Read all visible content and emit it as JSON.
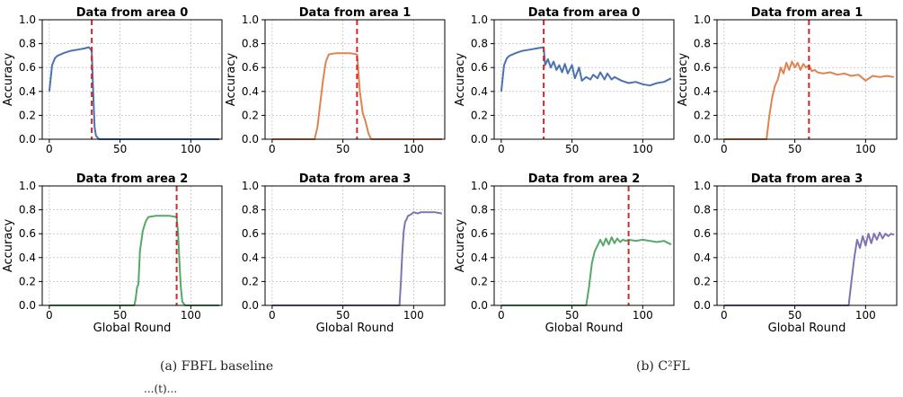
{
  "captions": {
    "left": "(a) FBFL baseline",
    "right": "(b) C²FL",
    "cut_off_text": "...(t)..."
  },
  "colors": {
    "area0": "#4c72b0",
    "area1": "#dd8452",
    "area2": "#55a868",
    "area3": "#8172b3",
    "vline": "#d62728"
  },
  "chart_data": [
    {
      "type": "line",
      "panel": "FBFL baseline",
      "area": 0,
      "title": "Data from area 0",
      "xlabel": "",
      "ylabel": "Accuracy",
      "xlim": [
        -5,
        122
      ],
      "ylim": [
        0,
        1
      ],
      "xticks": [
        0,
        50,
        100
      ],
      "yticks": [
        0.0,
        0.2,
        0.4,
        0.6,
        0.8,
        1.0
      ],
      "vline": 30,
      "color": "#4c72b0",
      "series": [
        {
          "x": [
            0,
            2,
            4,
            6,
            8,
            10,
            15,
            20,
            25,
            28,
            30,
            31,
            32,
            33,
            35,
            40,
            60,
            80,
            100,
            120
          ],
          "y": [
            0.4,
            0.62,
            0.68,
            0.7,
            0.71,
            0.72,
            0.74,
            0.75,
            0.76,
            0.77,
            0.74,
            0.4,
            0.1,
            0.03,
            0.0,
            0.0,
            0.0,
            0.0,
            0.0,
            0.0
          ]
        }
      ]
    },
    {
      "type": "line",
      "panel": "FBFL baseline",
      "area": 1,
      "title": "Data from area 1",
      "xlabel": "",
      "ylabel": "Accuracy",
      "xlim": [
        -5,
        122
      ],
      "ylim": [
        0,
        1
      ],
      "xticks": [
        0,
        50,
        100
      ],
      "yticks": [
        0.0,
        0.2,
        0.4,
        0.6,
        0.8,
        1.0
      ],
      "vline": 60,
      "color": "#dd8452",
      "series": [
        {
          "x": [
            0,
            30,
            32,
            34,
            36,
            38,
            40,
            45,
            50,
            55,
            60,
            62,
            64,
            66,
            68,
            70,
            80,
            120
          ],
          "y": [
            0.0,
            0.0,
            0.1,
            0.3,
            0.5,
            0.65,
            0.71,
            0.72,
            0.72,
            0.72,
            0.71,
            0.4,
            0.22,
            0.15,
            0.05,
            0.0,
            0.0,
            0.0
          ]
        }
      ]
    },
    {
      "type": "line",
      "panel": "FBFL baseline",
      "area": 2,
      "title": "Data from area 2",
      "xlabel": "Global Round",
      "ylabel": "Accuracy",
      "xlim": [
        -5,
        122
      ],
      "ylim": [
        0,
        1
      ],
      "xticks": [
        0,
        50,
        100
      ],
      "yticks": [
        0.0,
        0.2,
        0.4,
        0.6,
        0.8,
        1.0
      ],
      "vline": 90,
      "color": "#55a868",
      "series": [
        {
          "x": [
            0,
            60,
            61,
            62,
            63,
            64,
            66,
            68,
            70,
            75,
            80,
            85,
            90,
            91,
            92,
            93,
            94,
            96,
            120
          ],
          "y": [
            0.0,
            0.0,
            0.05,
            0.15,
            0.18,
            0.45,
            0.62,
            0.7,
            0.74,
            0.75,
            0.75,
            0.75,
            0.74,
            0.6,
            0.35,
            0.15,
            0.03,
            0.0,
            0.0
          ]
        }
      ]
    },
    {
      "type": "line",
      "panel": "FBFL baseline",
      "area": 3,
      "title": "Data from area 3",
      "xlabel": "Global Round",
      "ylabel": "",
      "xlim": [
        -5,
        122
      ],
      "ylim": [
        0,
        1
      ],
      "xticks": [
        0,
        50,
        100
      ],
      "yticks": [
        0.0,
        0.2,
        0.4,
        0.6,
        0.8,
        1.0
      ],
      "vline": null,
      "color": "#8172b3",
      "series": [
        {
          "x": [
            0,
            90,
            91,
            92,
            93,
            94,
            95,
            96,
            98,
            100,
            103,
            105,
            110,
            115,
            120
          ],
          "y": [
            0.0,
            0.0,
            0.2,
            0.45,
            0.62,
            0.7,
            0.72,
            0.75,
            0.76,
            0.78,
            0.77,
            0.78,
            0.78,
            0.78,
            0.77
          ]
        }
      ]
    },
    {
      "type": "line",
      "panel": "C²FL",
      "area": 0,
      "title": "Data from area 0",
      "xlabel": "",
      "ylabel": "Accuracy",
      "xlim": [
        -5,
        122
      ],
      "ylim": [
        0,
        1
      ],
      "xticks": [
        0,
        50,
        100
      ],
      "yticks": [
        0.0,
        0.2,
        0.4,
        0.6,
        0.8,
        1.0
      ],
      "vline": 30,
      "color": "#4c72b0",
      "series": [
        {
          "x": [
            0,
            2,
            4,
            6,
            8,
            10,
            15,
            20,
            25,
            30,
            31,
            33,
            35,
            37,
            39,
            41,
            43,
            45,
            47,
            50,
            52,
            55,
            57,
            60,
            63,
            65,
            68,
            70,
            73,
            75,
            78,
            80,
            85,
            90,
            95,
            100,
            105,
            110,
            115,
            120
          ],
          "y": [
            0.4,
            0.62,
            0.68,
            0.7,
            0.71,
            0.72,
            0.74,
            0.75,
            0.76,
            0.77,
            0.62,
            0.67,
            0.6,
            0.65,
            0.58,
            0.62,
            0.56,
            0.63,
            0.55,
            0.62,
            0.51,
            0.6,
            0.49,
            0.52,
            0.5,
            0.54,
            0.51,
            0.56,
            0.5,
            0.55,
            0.5,
            0.52,
            0.49,
            0.47,
            0.48,
            0.46,
            0.45,
            0.47,
            0.48,
            0.51
          ]
        }
      ]
    },
    {
      "type": "line",
      "panel": "C²FL",
      "area": 1,
      "title": "Data from area 1",
      "xlabel": "",
      "ylabel": "Accuracy",
      "xlim": [
        -5,
        122
      ],
      "ylim": [
        0,
        1
      ],
      "xticks": [
        0,
        50,
        100
      ],
      "yticks": [
        0.0,
        0.2,
        0.4,
        0.6,
        0.8,
        1.0
      ],
      "vline": 60,
      "color": "#dd8452",
      "series": [
        {
          "x": [
            0,
            30,
            32,
            34,
            36,
            38,
            40,
            42,
            44,
            46,
            48,
            50,
            52,
            54,
            56,
            58,
            60,
            62,
            64,
            66,
            70,
            75,
            80,
            85,
            90,
            95,
            100,
            105,
            110,
            115,
            120
          ],
          "y": [
            0.0,
            0.0,
            0.2,
            0.35,
            0.45,
            0.5,
            0.6,
            0.55,
            0.64,
            0.58,
            0.65,
            0.6,
            0.64,
            0.58,
            0.63,
            0.6,
            0.62,
            0.57,
            0.58,
            0.56,
            0.55,
            0.56,
            0.54,
            0.55,
            0.53,
            0.54,
            0.49,
            0.53,
            0.52,
            0.53,
            0.52
          ]
        }
      ]
    },
    {
      "type": "line",
      "panel": "C²FL",
      "area": 2,
      "title": "Data from area 2",
      "xlabel": "Global Round",
      "ylabel": "Accuracy",
      "xlim": [
        -5,
        122
      ],
      "ylim": [
        0,
        1
      ],
      "xticks": [
        0,
        50,
        100
      ],
      "yticks": [
        0.0,
        0.2,
        0.4,
        0.6,
        0.8,
        1.0
      ],
      "vline": 90,
      "color": "#55a868",
      "series": [
        {
          "x": [
            0,
            60,
            62,
            64,
            66,
            68,
            70,
            72,
            74,
            76,
            78,
            80,
            82,
            84,
            86,
            88,
            90,
            95,
            100,
            105,
            110,
            115,
            120
          ],
          "y": [
            0.0,
            0.0,
            0.15,
            0.35,
            0.45,
            0.5,
            0.55,
            0.5,
            0.56,
            0.51,
            0.57,
            0.52,
            0.56,
            0.53,
            0.55,
            0.54,
            0.55,
            0.54,
            0.55,
            0.54,
            0.53,
            0.54,
            0.51
          ]
        }
      ]
    },
    {
      "type": "line",
      "panel": "C²FL",
      "area": 3,
      "title": "Data from area 3",
      "xlabel": "Global Round",
      "ylabel": "",
      "xlim": [
        -5,
        122
      ],
      "ylim": [
        0,
        1
      ],
      "xticks": [
        0,
        50,
        100
      ],
      "yticks": [
        0.0,
        0.2,
        0.4,
        0.6,
        0.8,
        1.0
      ],
      "vline": null,
      "color": "#8172b3",
      "series": [
        {
          "x": [
            0,
            88,
            90,
            92,
            94,
            96,
            98,
            100,
            102,
            104,
            106,
            108,
            110,
            112,
            114,
            116,
            118,
            120
          ],
          "y": [
            0.0,
            0.0,
            0.2,
            0.4,
            0.55,
            0.48,
            0.58,
            0.5,
            0.6,
            0.52,
            0.6,
            0.55,
            0.61,
            0.56,
            0.6,
            0.58,
            0.6,
            0.59
          ]
        }
      ]
    }
  ]
}
